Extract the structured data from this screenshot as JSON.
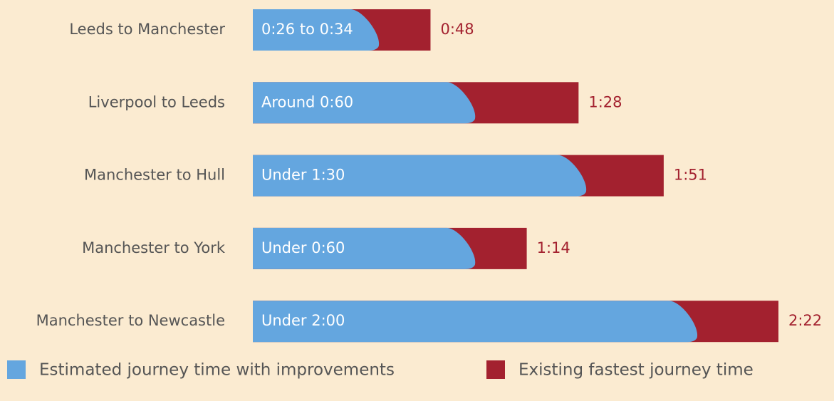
{
  "chart_data": {
    "type": "bar",
    "categories": [
      "Leeds to Manchester",
      "Liverpool to Leeds",
      "Manchester to Hull",
      "Manchester to York",
      "Manchester to Newcastle"
    ],
    "series": [
      {
        "name": "Estimated journey time with improvements",
        "color": "#64a6df",
        "values": [
          34,
          60,
          90,
          60,
          120
        ],
        "value_labels": [
          "0:26 to 0:34",
          "Around 0:60",
          "Under 1:30",
          "Under 0:60",
          "Under 2:00"
        ]
      },
      {
        "name": "Existing fastest journey time",
        "color": "#a3212f",
        "values": [
          48,
          88,
          111,
          74,
          142
        ],
        "value_labels": [
          "0:48",
          "1:28",
          "1:51",
          "1:14",
          "2:22"
        ]
      }
    ]
  }
}
